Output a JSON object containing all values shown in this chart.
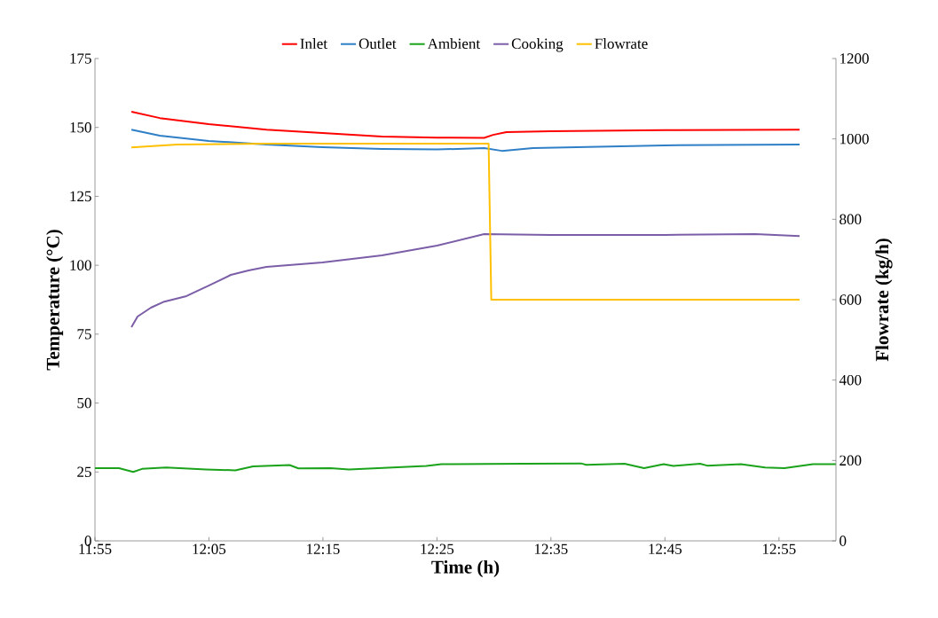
{
  "chart_data": {
    "type": "line",
    "xlabel": "Time (h)",
    "ylabel": "Temperature (°C)",
    "y2label": "Flowrate (kg/h)",
    "xlim": [
      11.9167,
      13.0
    ],
    "xticks": [
      {
        "value": 11.9167,
        "label": "11:55"
      },
      {
        "value": 12.0833,
        "label": "12:05"
      },
      {
        "value": 12.25,
        "label": "12:15"
      },
      {
        "value": 12.4167,
        "label": "12:25"
      },
      {
        "value": 12.5833,
        "label": "12:35"
      },
      {
        "value": 12.75,
        "label": "12:45"
      },
      {
        "value": 12.9167,
        "label": "12:55"
      }
    ],
    "ylim": [
      0,
      175
    ],
    "yticks": [
      0,
      25,
      50,
      75,
      100,
      125,
      150,
      175
    ],
    "y2lim": [
      0,
      1200
    ],
    "y2ticks": [
      0,
      200,
      400,
      600,
      800,
      1000,
      1200
    ],
    "legend": "top",
    "grid": false,
    "marker": "none",
    "line_style": "solid",
    "series": [
      {
        "name": "Inlet",
        "color": "#ff0000",
        "x": [
          11.97,
          12.0115,
          12.083,
          12.1673,
          12.2492,
          12.3363,
          12.4167,
          12.4857,
          12.4987,
          12.5182,
          12.583,
          12.7493,
          12.9468
        ],
        "values": [
          155.7,
          153.4,
          151.2,
          149.2,
          148.0,
          146.7,
          146.3,
          146.2,
          147.3,
          148.3,
          148.6,
          149.0,
          149.2
        ]
      },
      {
        "name": "Outlet",
        "color": "#2e7fc6",
        "x": [
          11.97,
          12.0115,
          12.083,
          12.1673,
          12.2492,
          12.3363,
          12.4167,
          12.4857,
          12.5116,
          12.5571,
          12.7493,
          12.9468
        ],
        "values": [
          149.2,
          147.0,
          145.1,
          143.8,
          142.8,
          142.2,
          142.0,
          142.5,
          141.5,
          142.5,
          143.5,
          143.8
        ]
      },
      {
        "name": "Ambient",
        "color": "#1aa31a",
        "x": [
          11.9167,
          11.9518,
          11.9726,
          11.9855,
          12.0206,
          12.0791,
          12.1219,
          12.1479,
          12.2012,
          12.2142,
          12.2609,
          12.2882,
          12.4012,
          12.4233,
          12.5428,
          12.6273,
          12.6351,
          12.6909,
          12.7195,
          12.7481,
          12.7624,
          12.8013,
          12.8117,
          12.8611,
          12.8962,
          12.9247,
          12.9663,
          13.0
        ],
        "values": [
          26.4,
          26.4,
          25.0,
          26.1,
          26.6,
          25.9,
          25.6,
          27.0,
          27.5,
          26.3,
          26.4,
          25.9,
          27.2,
          27.8,
          28.0,
          28.1,
          27.6,
          28.0,
          26.4,
          27.8,
          27.2,
          28.0,
          27.3,
          27.8,
          26.6,
          26.4,
          27.8,
          27.8
        ]
      },
      {
        "name": "Cooking",
        "color": "#7b5ea7",
        "x": [
          11.97,
          11.979,
          11.9985,
          12.018,
          12.0505,
          12.083,
          12.1154,
          12.1414,
          12.1674,
          12.2492,
          12.3363,
          12.4168,
          12.4857,
          12.5831,
          12.7494,
          12.8819,
          12.9468
        ],
        "values": [
          77.5,
          81.4,
          84.6,
          86.8,
          88.8,
          92.6,
          96.5,
          98.1,
          99.4,
          101.0,
          103.6,
          107.1,
          111.3,
          111.0,
          111.0,
          111.3,
          110.6
        ]
      },
      {
        "name": "Flowrate",
        "color": "#ffc000",
        "axis": "y2",
        "x": [
          11.97,
          12.0375,
          12.1674,
          12.2973,
          12.4922,
          12.4961,
          12.4987,
          12.9468
        ],
        "values": [
          979,
          986,
          988,
          988,
          988,
          600,
          600,
          600
        ]
      }
    ]
  }
}
